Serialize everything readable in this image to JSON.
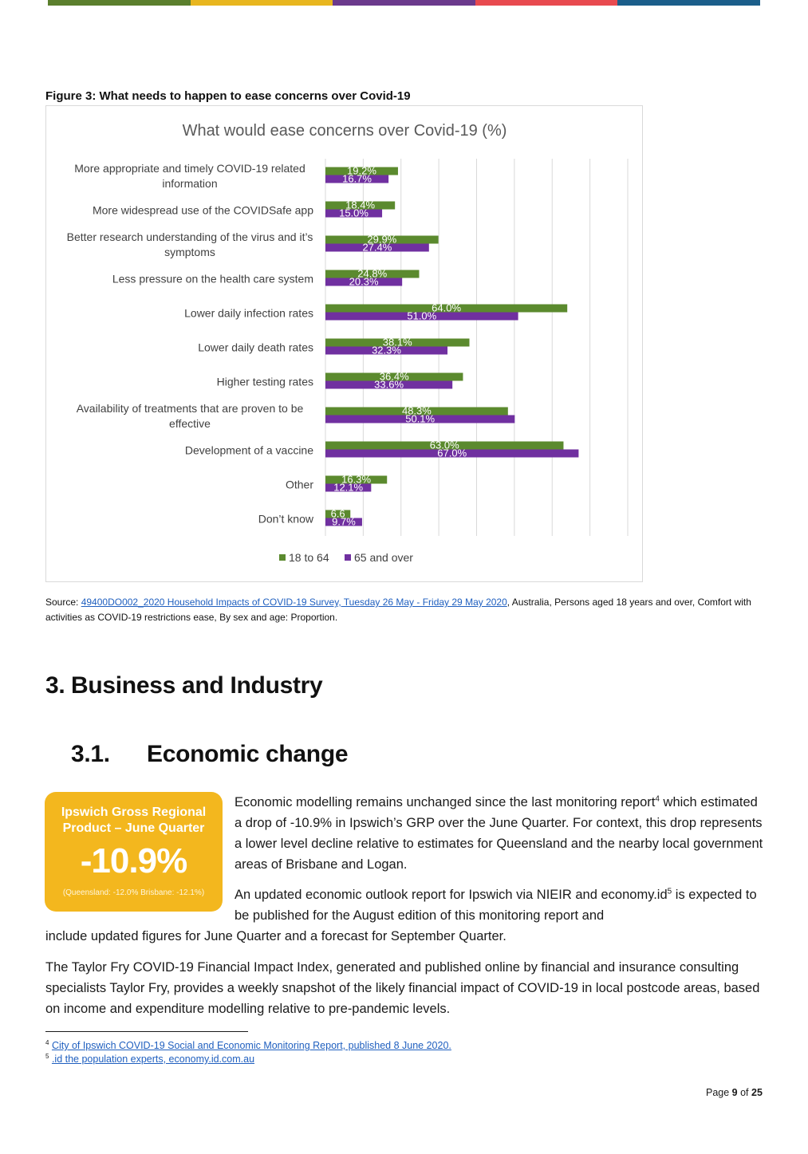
{
  "top_bar_colors": [
    "#5b7f2d",
    "#e8b61f",
    "#6b3a8c",
    "#e84a4f",
    "#1b5e8a"
  ],
  "figure_caption": "Figure 3: What needs to happen to ease concerns over Covid-19",
  "chart_data": {
    "type": "bar",
    "orientation": "horizontal",
    "title": "What would ease concerns over Covid-19 (%)",
    "categories": [
      [
        "More appropriate and timely COVID-19 related",
        "information"
      ],
      [
        "More widespread use of the COVIDSafe app"
      ],
      [
        "Better research understanding of the virus and it’s",
        "symptoms"
      ],
      [
        "Less pressure on the health care system"
      ],
      [
        "Lower daily infection rates"
      ],
      [
        "Lower daily death rates"
      ],
      [
        "Higher testing rates"
      ],
      [
        "Availability of treatments that are proven to be",
        "effective"
      ],
      [
        "Development of a vaccine"
      ],
      [
        "Other"
      ],
      [
        "Don’t know"
      ]
    ],
    "series": [
      {
        "name": "18 to 64",
        "color": "#5b8a2e",
        "values": [
          19.2,
          18.4,
          29.9,
          24.8,
          64.0,
          38.1,
          36.4,
          48.3,
          63.0,
          16.3,
          6.6
        ],
        "labels": [
          "19.2%",
          "18.4%",
          "29.9%",
          "24.8%",
          "64.0%",
          "38.1%",
          "36.4%",
          "48.3%",
          "63.0%",
          "16.3%",
          "6.6"
        ]
      },
      {
        "name": "65 and over",
        "color": "#7030a0",
        "values": [
          16.7,
          15.0,
          27.4,
          20.3,
          51.0,
          32.3,
          33.6,
          50.1,
          67.0,
          12.1,
          9.7
        ],
        "labels": [
          "16.7%",
          "15.0%",
          "27.4%",
          "20.3%",
          "51.0%",
          "32.3%",
          "33.6%",
          "50.1%",
          "67.0%",
          "12.1%",
          "9.7%"
        ]
      }
    ],
    "xlim": [
      0,
      80
    ],
    "grid": true,
    "legend": "bottom"
  },
  "source": {
    "prefix": "Source: ",
    "link": "49400DO002_2020 Household Impacts of COVID-19 Survey, Tuesday 26 May - Friday 29 May 2020",
    "rest": ", Australia, Persons aged 18 years and over, Comfort with activities as COVID-19 restrictions ease, By sex and age: Proportion."
  },
  "heading_main": {
    "num": "3.",
    "text": "Business and Industry"
  },
  "heading_sub": {
    "num": "3.1.",
    "text": "Economic change"
  },
  "grp_box": {
    "line1": "Ipswich Gross Regional",
    "line2": "Product – June Quarter",
    "value": "-10.9%",
    "note": "(Queensland: -12.0% Brisbane: -12.1%)"
  },
  "para1": {
    "a": "Economic modelling remains unchanged since the last monitoring report",
    "sup": "4",
    "b": " which estimated a drop of -10.9% in Ipswich’s GRP over the June Quarter. For context, this drop represents a lower level decline relative to estimates for Queensland and the nearby local government areas of Brisbane and Logan."
  },
  "para2": {
    "a": "An updated economic outlook report for Ipswich via NIEIR and economy.id",
    "sup": "5",
    "b": " is expected to be published for the August edition of this monitoring report and",
    "c": "include updated figures for June Quarter and a forecast for September Quarter."
  },
  "para3": "The Taylor Fry COVID-19 Financial Impact Index, generated and published online by financial and insurance consulting specialists Taylor Fry, provides a weekly snapshot of the likely financial impact of COVID-19 in local postcode areas, based on income and expenditure modelling relative to pre-pandemic levels.",
  "footnotes": [
    {
      "num": "4",
      "text": "City of Ipswich COVID-19 Social and Economic Monitoring Report, published 8 June 2020."
    },
    {
      "num": "5",
      "text": ".id the population experts, economy.id.com.au"
    }
  ],
  "page": {
    "prefix": "Page ",
    "current": "9",
    "of": " of ",
    "total": "25"
  }
}
